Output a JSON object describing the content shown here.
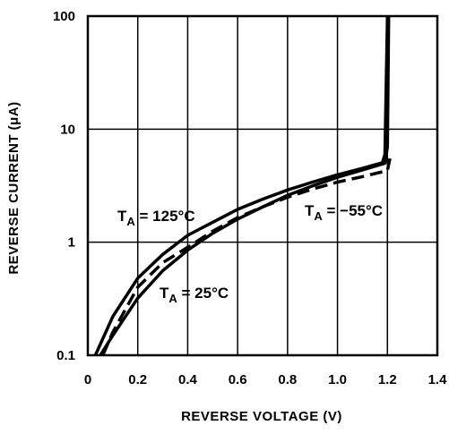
{
  "chart_data": {
    "type": "line",
    "xlabel": "REVERSE VOLTAGE (V)",
    "ylabel": "REVERSE CURRENT (μA)",
    "xlim": [
      0,
      1.4
    ],
    "ylim": [
      0.1,
      100
    ],
    "yscale": "log",
    "grid": true,
    "x_ticks": [
      {
        "value": 0,
        "label": "0"
      },
      {
        "value": 0.2,
        "label": "0.2"
      },
      {
        "value": 0.4,
        "label": "0.4"
      },
      {
        "value": 0.6,
        "label": "0.6"
      },
      {
        "value": 0.8,
        "label": "0.8"
      },
      {
        "value": 1.0,
        "label": "1.0"
      },
      {
        "value": 1.2,
        "label": "1.2"
      },
      {
        "value": 1.4,
        "label": "1.4"
      }
    ],
    "y_ticks": [
      {
        "value": 0.1,
        "label": "0.1"
      },
      {
        "value": 1,
        "label": "1"
      },
      {
        "value": 10,
        "label": "10"
      },
      {
        "value": 100,
        "label": "100"
      }
    ],
    "series": [
      {
        "name": "T_A = 125°C",
        "style": "solid",
        "points": [
          [
            0.03,
            0.1
          ],
          [
            0.1,
            0.22
          ],
          [
            0.2,
            0.48
          ],
          [
            0.3,
            0.78
          ],
          [
            0.4,
            1.15
          ],
          [
            0.5,
            1.5
          ],
          [
            0.6,
            1.95
          ],
          [
            0.7,
            2.4
          ],
          [
            0.8,
            2.9
          ],
          [
            0.9,
            3.4
          ],
          [
            1.0,
            3.95
          ],
          [
            1.1,
            4.5
          ],
          [
            1.18,
            5.05
          ],
          [
            1.19,
            6
          ],
          [
            1.2,
            100
          ]
        ]
      },
      {
        "name": "T_A = 25°C",
        "style": "solid",
        "points": [
          [
            0.05,
            0.1
          ],
          [
            0.1,
            0.15
          ],
          [
            0.2,
            0.32
          ],
          [
            0.3,
            0.56
          ],
          [
            0.4,
            0.85
          ],
          [
            0.5,
            1.2
          ],
          [
            0.6,
            1.6
          ],
          [
            0.7,
            2.05
          ],
          [
            0.8,
            2.6
          ],
          [
            0.9,
            3.15
          ],
          [
            1.0,
            3.75
          ],
          [
            1.1,
            4.35
          ],
          [
            1.19,
            5.0
          ],
          [
            1.2,
            7
          ],
          [
            1.205,
            100
          ]
        ]
      },
      {
        "name": "T_A = −55°C",
        "style": "dashed",
        "points": [
          [
            0.06,
            0.1
          ],
          [
            0.1,
            0.16
          ],
          [
            0.2,
            0.4
          ],
          [
            0.3,
            0.66
          ],
          [
            0.4,
            0.9
          ],
          [
            0.5,
            1.25
          ],
          [
            0.6,
            1.65
          ],
          [
            0.7,
            2.05
          ],
          [
            0.8,
            2.5
          ],
          [
            0.9,
            2.95
          ],
          [
            1.0,
            3.4
          ],
          [
            1.1,
            3.8
          ],
          [
            1.2,
            4.3
          ],
          [
            1.21,
            5.5
          ]
        ]
      }
    ],
    "annotations": [
      {
        "main": "T",
        "sub": "A",
        "rest": " = 125°C",
        "series": 0
      },
      {
        "main": "T",
        "sub": "A",
        "rest": " = 25°C",
        "series": 1
      },
      {
        "main": "T",
        "sub": "A",
        "rest": " = −55°C",
        "series": 2
      }
    ]
  }
}
